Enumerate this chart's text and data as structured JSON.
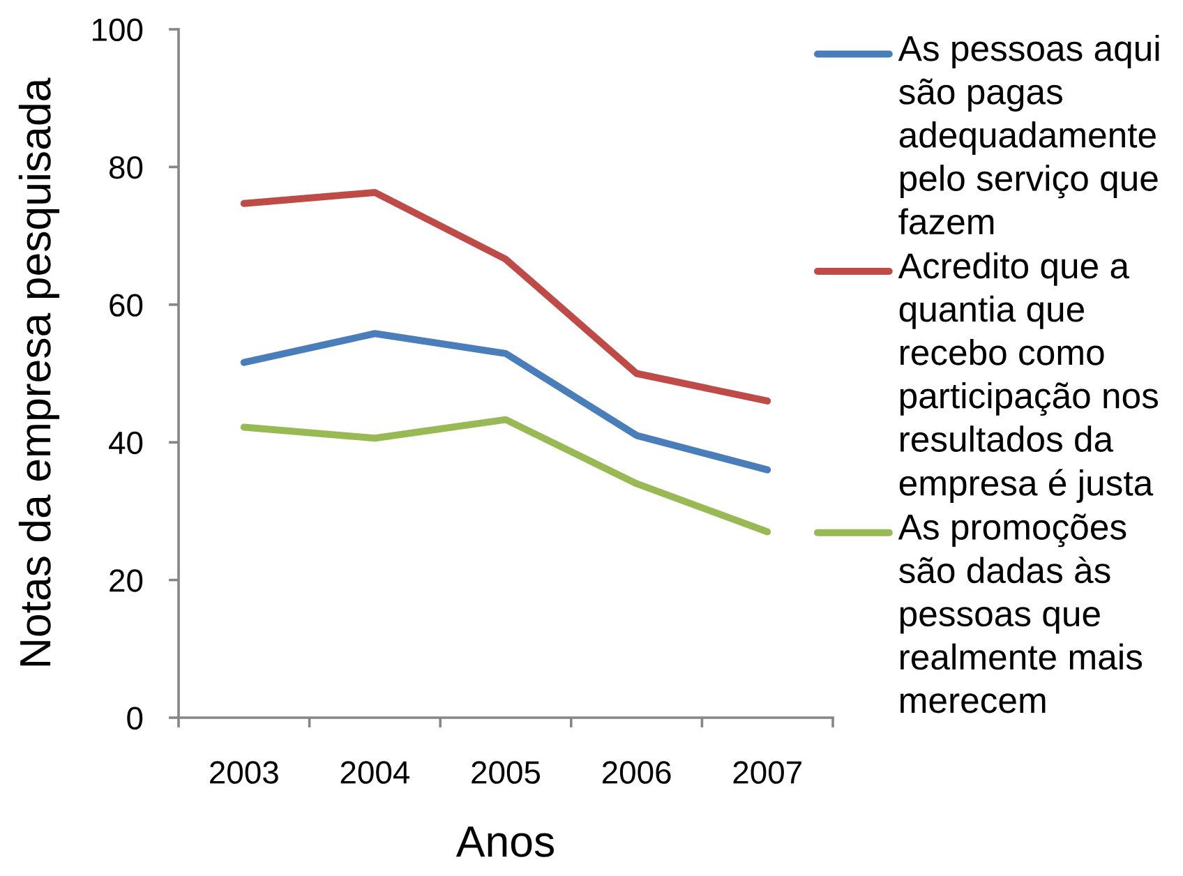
{
  "chart_data": {
    "type": "line",
    "xlabel": "Anos",
    "ylabel": "Notas da empresa pesquisada",
    "categories": [
      "2003",
      "2004",
      "2005",
      "2006",
      "2007"
    ],
    "series": [
      {
        "name": "As pessoas aqui\nsão pagas\nadequadamente\npelo serviço que\nfazem",
        "color": "#4a7ebb",
        "values": [
          51.6,
          55.8,
          52.9,
          41.0,
          36.0
        ]
      },
      {
        "name": "Acredito que a\nquantia que\nrecebo como\nparticipação nos\nresultados da\nempresa é justa",
        "color": "#be4b48",
        "values": [
          74.7,
          76.3,
          66.6,
          50.0,
          46.0
        ]
      },
      {
        "name": "As promoções\nsão dadas às\npessoas que\nrealmente mais\nmerecem",
        "color": "#98b954",
        "values": [
          42.2,
          40.6,
          43.3,
          34.0,
          27.0
        ]
      }
    ],
    "ylim": [
      0,
      100
    ],
    "yticks": [
      0,
      20,
      40,
      60,
      80,
      100
    ],
    "legend": "right",
    "line_style": "solid"
  }
}
